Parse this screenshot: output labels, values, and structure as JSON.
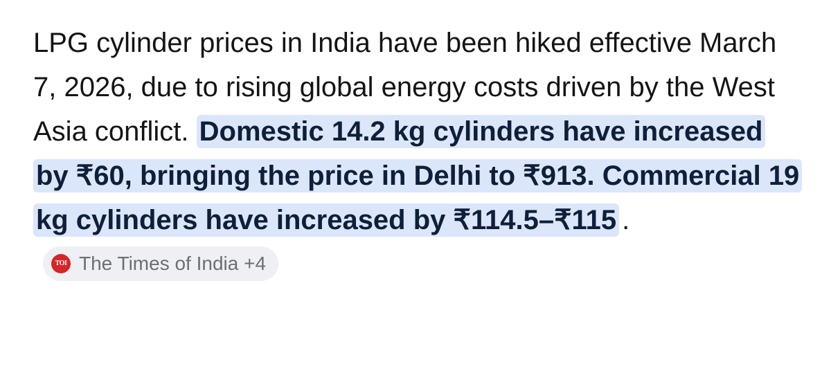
{
  "answer": {
    "plain_text": "LPG cylinder prices in India have been hiked effective March 7, 2026, due to rising global energy costs driven by the West Asia conflict. ",
    "highlighted_text": "Domestic 14.2 kg cylinders have increased by ₹60, bringing the price in Delhi to ₹913. Commercial 19 kg cylinders have increased by ₹114.5–₹115",
    "end_punct": ".",
    "source_chip": {
      "icon": "toi-logo-icon",
      "icon_text": "TOI",
      "label": "The Times of India +4",
      "icon_color": "#d4262b"
    }
  },
  "colors": {
    "highlight_bg": "#dbe6fb",
    "highlight_text": "#0f1f3a",
    "body_text": "#141414",
    "chip_bg": "#eef0f3"
  }
}
